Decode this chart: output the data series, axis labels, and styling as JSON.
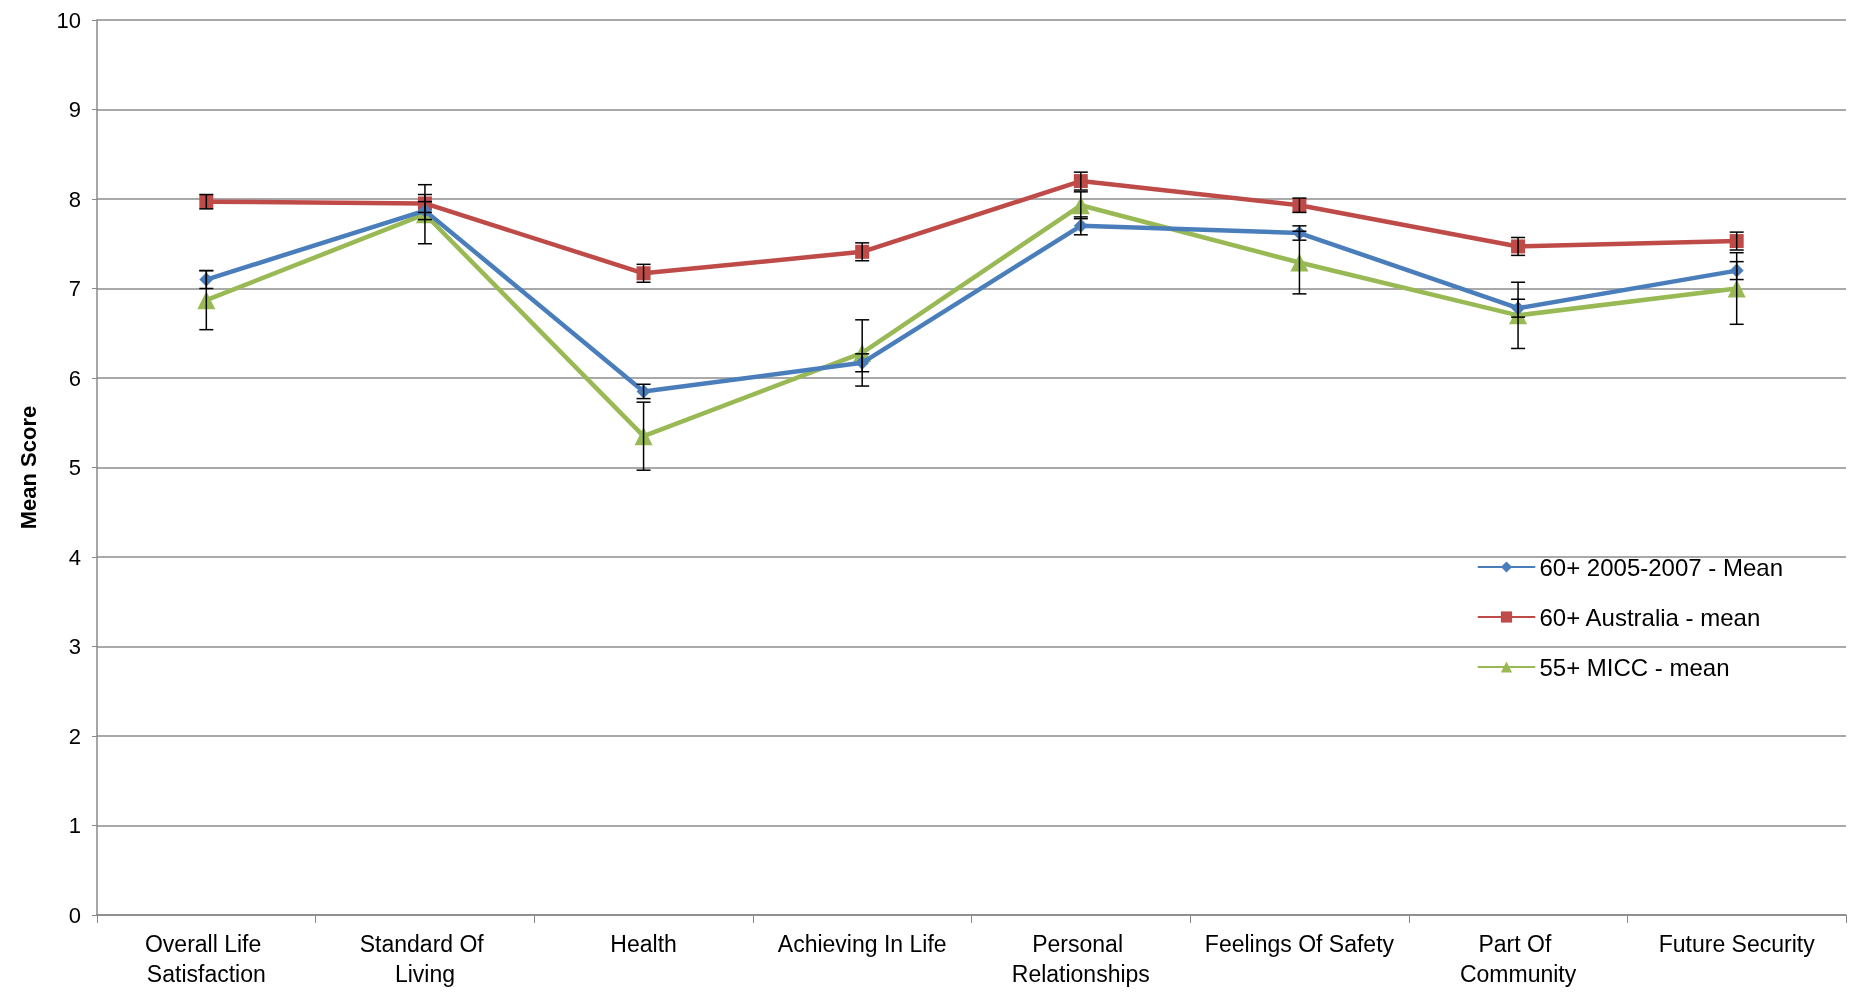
{
  "chart_data": {
    "type": "line",
    "ylabel": "Mean Score",
    "categories": [
      "Overall Life Satisfaction",
      "Standard Of Living",
      "Health",
      "Achieving In Life",
      "Personal Relationships",
      "Feelings Of Safety",
      "Part Of Community",
      "Future Security"
    ],
    "series": [
      {
        "name": "60+ 2005-2007 - Mean",
        "color": "#4a7ebb",
        "marker": "diamond",
        "values": [
          7.1,
          7.87,
          5.85,
          6.17,
          7.7,
          7.62,
          6.78,
          7.2
        ],
        "errors": [
          0.1,
          0.1,
          0.08,
          0.1,
          0.1,
          0.08,
          0.1,
          0.1
        ]
      },
      {
        "name": "60+ Australia - mean",
        "color": "#be4b48",
        "marker": "square",
        "values": [
          7.97,
          7.95,
          7.17,
          7.41,
          8.2,
          7.93,
          7.47,
          7.53
        ],
        "errors": [
          0.08,
          0.1,
          0.1,
          0.1,
          0.1,
          0.08,
          0.1,
          0.1
        ]
      },
      {
        "name": "55+ MICC - mean",
        "color": "#98b954",
        "marker": "triangle",
        "values": [
          6.87,
          7.83,
          5.35,
          6.28,
          7.93,
          7.29,
          6.7,
          7.0
        ],
        "errors": [
          0.33,
          0.33,
          0.38,
          0.37,
          0.15,
          0.35,
          0.37,
          0.4
        ]
      }
    ],
    "ylim": [
      0,
      10
    ],
    "yticks": [
      0,
      1,
      2,
      3,
      4,
      5,
      6,
      7,
      8,
      9,
      10
    ],
    "grid": "y",
    "legend": "right"
  }
}
